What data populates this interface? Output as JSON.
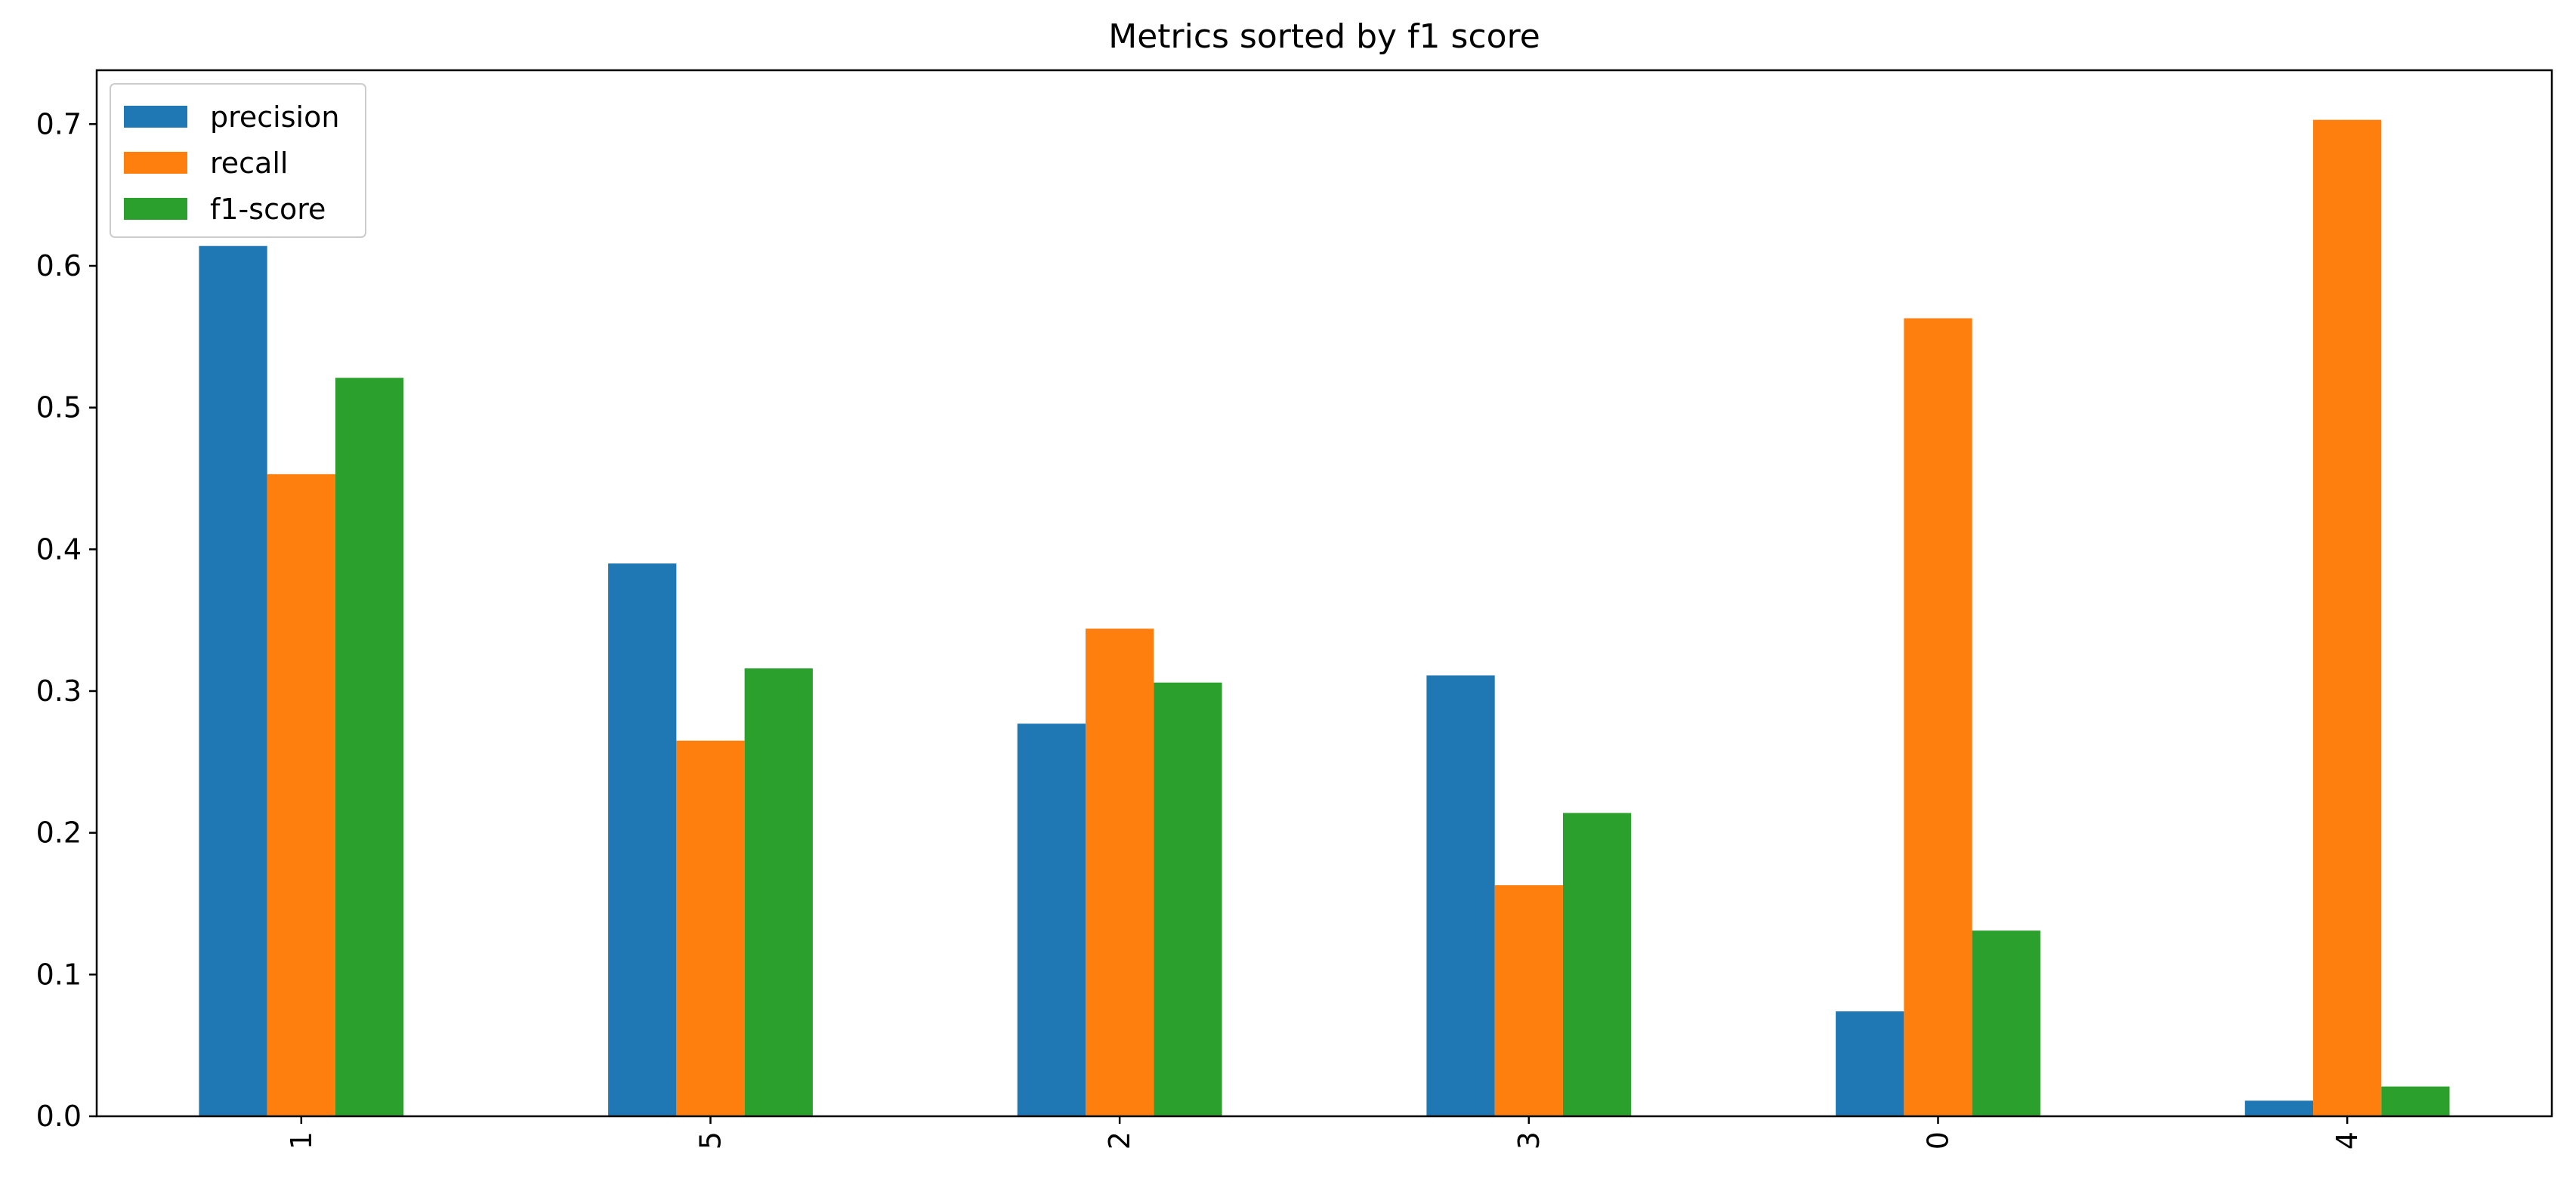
{
  "chart_data": {
    "type": "bar",
    "title": "Metrics sorted by f1 score",
    "xlabel": "",
    "ylabel": "",
    "categories": [
      "1",
      "5",
      "2",
      "3",
      "0",
      "4"
    ],
    "series": [
      {
        "name": "precision",
        "color": "#1f77b4",
        "values": [
          0.614,
          0.39,
          0.277,
          0.311,
          0.074,
          0.011
        ]
      },
      {
        "name": "recall",
        "color": "#ff7f0e",
        "values": [
          0.453,
          0.265,
          0.344,
          0.163,
          0.563,
          0.703
        ]
      },
      {
        "name": "f1-score",
        "color": "#2ca02c",
        "values": [
          0.521,
          0.316,
          0.306,
          0.214,
          0.131,
          0.021
        ]
      }
    ],
    "ylim": [
      0,
      0.738
    ],
    "yticks": [
      "0.0",
      "0.1",
      "0.2",
      "0.3",
      "0.4",
      "0.5",
      "0.6",
      "0.7"
    ],
    "ytick_values": [
      0.0,
      0.1,
      0.2,
      0.3,
      0.4,
      0.5,
      0.6,
      0.7
    ],
    "xtick_rotation": "vertical",
    "grid": false,
    "legend_position": "upper-left"
  }
}
